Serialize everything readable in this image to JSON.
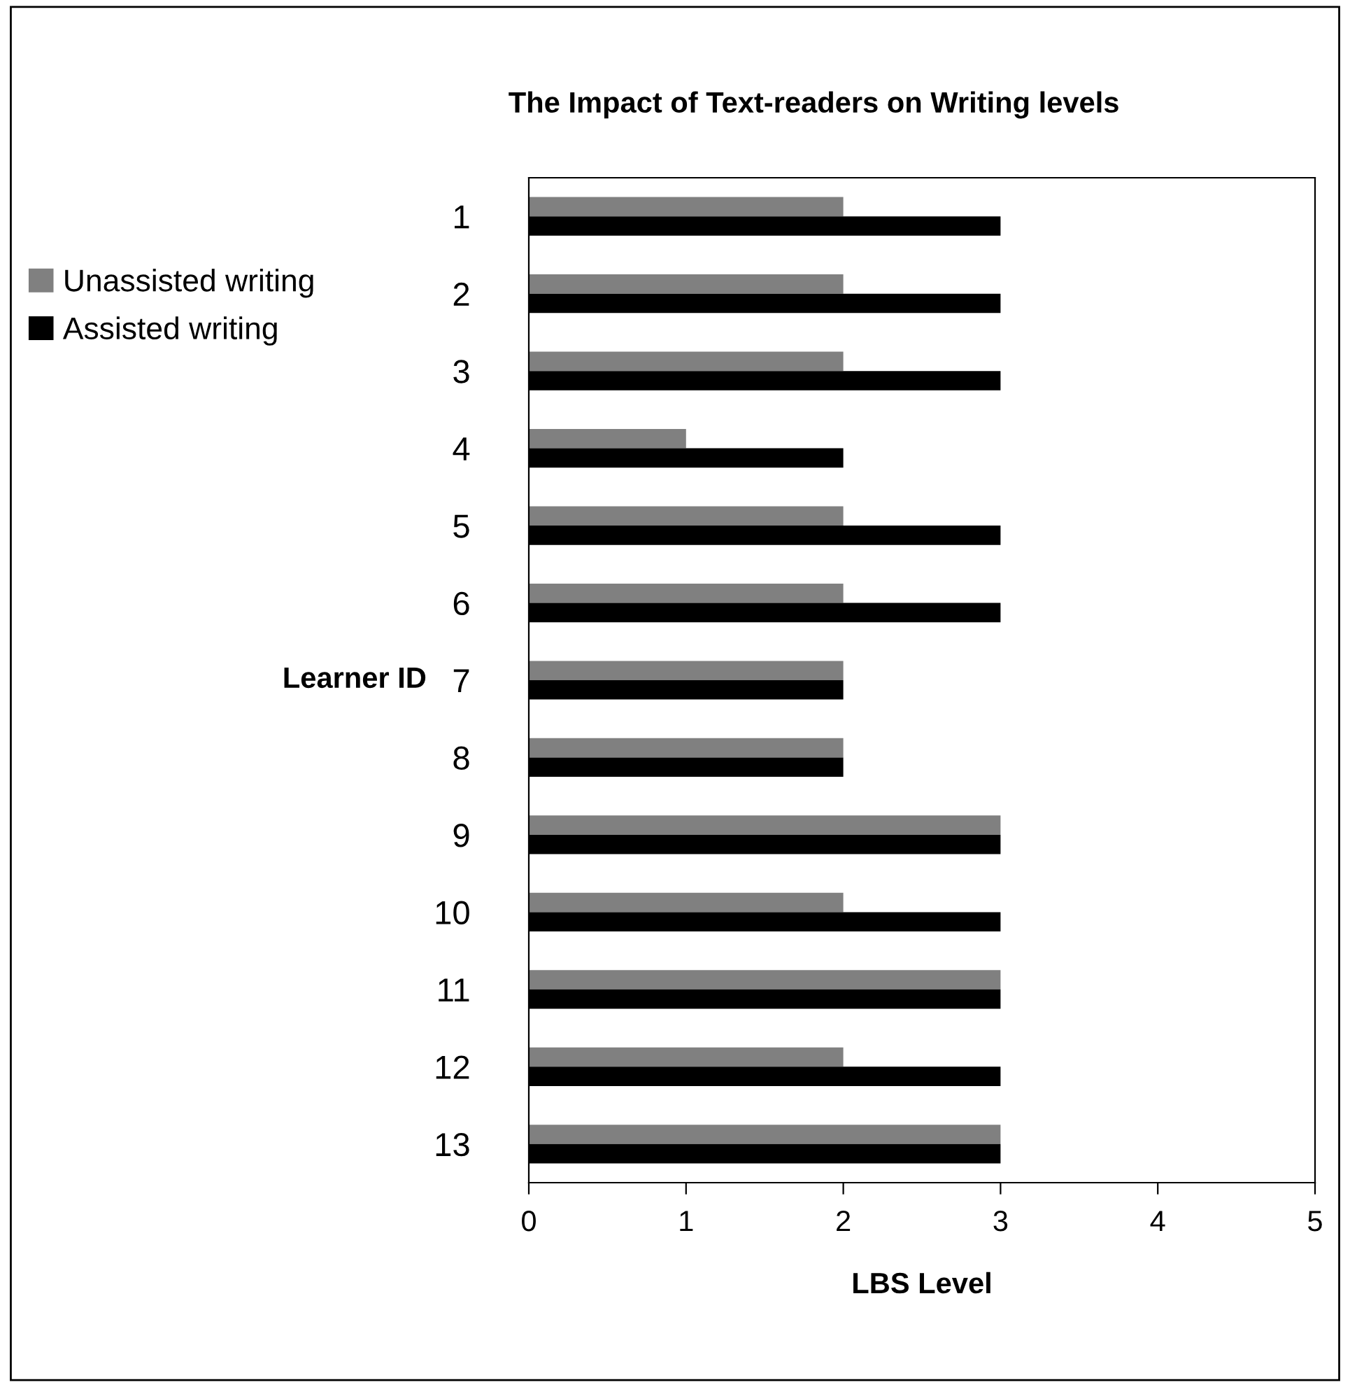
{
  "chart_data": {
    "type": "bar",
    "orientation": "horizontal",
    "title": "The Impact of Text-readers on Writing levels",
    "xlabel": "LBS Level",
    "ylabel": "Learner ID",
    "categories": [
      "1",
      "2",
      "3",
      "4",
      "5",
      "6",
      "7",
      "8",
      "9",
      "10",
      "11",
      "12",
      "13"
    ],
    "series": [
      {
        "name": "Unassisted writing",
        "color": "#808080",
        "values": [
          2,
          2,
          2,
          1,
          2,
          2,
          2,
          2,
          3,
          2,
          3,
          2,
          3
        ]
      },
      {
        "name": "Assisted writing",
        "color": "#000000",
        "values": [
          3,
          3,
          3,
          2,
          3,
          3,
          2,
          2,
          3,
          3,
          3,
          3,
          3
        ]
      }
    ],
    "xlim": [
      0,
      5
    ],
    "xticks": [
      0,
      1,
      2,
      3,
      4,
      5
    ],
    "grid": false,
    "legend": "left"
  }
}
